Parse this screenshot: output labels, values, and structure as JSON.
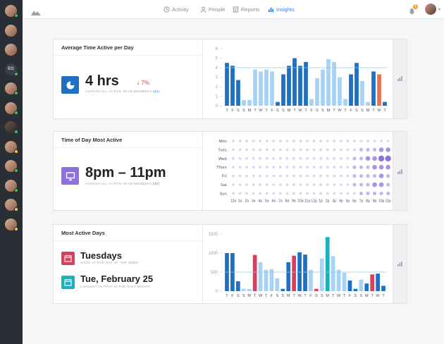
{
  "sidebar": {
    "avatars": [
      {
        "kind": "photo",
        "status": "#3fbf5a"
      },
      {
        "kind": "photo",
        "status": ""
      },
      {
        "kind": "photo",
        "status": ""
      },
      {
        "kind": "initials",
        "label": "EG",
        "status": "#3fbf5a"
      },
      {
        "kind": "photo",
        "status": "#3fbf5a"
      },
      {
        "kind": "photo",
        "status": "#3fbf5a"
      },
      {
        "kind": "dark",
        "status": "#3fbf5a"
      },
      {
        "kind": "photo",
        "status": "#f2c94c"
      },
      {
        "kind": "photo",
        "status": "#3fbf5a"
      },
      {
        "kind": "photo",
        "status": "#3fbf5a"
      },
      {
        "kind": "photo",
        "status": "#f2c94c"
      },
      {
        "kind": "photo",
        "status": "#f2c94c"
      }
    ]
  },
  "nav": {
    "items": [
      {
        "label": "Activity",
        "icon": "clock-icon",
        "active": false
      },
      {
        "label": "People",
        "icon": "person-icon",
        "active": false
      },
      {
        "label": "Reports",
        "icon": "document-icon",
        "active": false
      },
      {
        "label": "Insights",
        "icon": "bar-chart-icon",
        "active": true
      }
    ],
    "notification_count": "1"
  },
  "cards": {
    "avg_time": {
      "title": "Average Time Active per Day",
      "value": "4 hrs",
      "delta": "7%",
      "subtitle_prefix": "ACROSS ALL ACTIVE TEAM MEMBERS",
      "subtitle_count": "(32)"
    },
    "time_of_day": {
      "title": "Time of Day Most Active",
      "value": "8pm – 11pm",
      "subtitle_prefix": "ACROSS ALL ACTIVE TEAM MEMBERS",
      "subtitle_count": "(32)"
    },
    "active_days": {
      "title": "Most Active Days",
      "primary_value": "Tuesdays",
      "primary_caption": "MOST ACTIVE DAY OF THE WEEK",
      "secondary_value": "Tue, February 25",
      "secondary_caption": "LARGEST OUTPUT IN THE PAST MONTH"
    }
  },
  "colors": {
    "blue": "#1f6fc5",
    "light_blue": "#a9d3f5",
    "orange": "#e8714f",
    "pink": "#d9405f",
    "teal": "#1ab0bd",
    "purple": "#8e6ee0",
    "accent_link": "#2f80ed"
  },
  "chart_data": [
    {
      "type": "bar",
      "categories": [
        "T",
        "F",
        "S",
        "S",
        "M",
        "T",
        "W",
        "T",
        "F",
        "S",
        "S",
        "M",
        "T",
        "W",
        "T",
        "F",
        "S",
        "S",
        "M",
        "T",
        "W",
        "T",
        "F",
        "S",
        "S",
        "M",
        "T",
        "W",
        "T"
      ],
      "values": [
        4.5,
        4.2,
        2.7,
        0.6,
        0.6,
        3.8,
        3.6,
        3.8,
        3.6,
        0.4,
        3.3,
        4.2,
        5.0,
        4.2,
        4.6,
        0.7,
        2.9,
        3.8,
        4.9,
        4.6,
        3.0,
        0.7,
        3.3,
        4.5,
        2.6,
        0.4,
        3.6,
        3.3,
        0.4
      ],
      "colors": [
        "blue",
        "blue",
        "blue",
        "light",
        "light",
        "light",
        "light",
        "light",
        "light",
        "blue",
        "blue",
        "blue",
        "blue",
        "blue",
        "blue",
        "light",
        "light",
        "light",
        "light",
        "light",
        "light",
        "light",
        "blue",
        "blue",
        "light",
        "light",
        "blue",
        "orange",
        "blue"
      ],
      "ylim": [
        0,
        6
      ],
      "yticks": [
        "0",
        "1",
        "2",
        "3",
        "4",
        "5",
        "6"
      ],
      "reference_line": 4.0,
      "grid": false
    },
    {
      "type": "scatter",
      "rows": [
        "Mon.",
        "Tues.",
        "Wed.",
        "Thurs.",
        "Fri.",
        "Sat.",
        "Sun."
      ],
      "columns": [
        "12a",
        "1a",
        "2a",
        "3a",
        "4a",
        "5a",
        "6a",
        "7a",
        "8a",
        "9a",
        "10a",
        "11a",
        "12p",
        "1p",
        "2p",
        "3p",
        "4p",
        "5p",
        "6p",
        "7p",
        "8p",
        "9p",
        "10p",
        "11p"
      ],
      "intensity": [
        [
          1,
          1,
          1,
          1,
          1,
          1,
          1,
          1,
          1,
          1,
          1,
          1,
          1,
          1,
          1,
          1,
          1,
          1,
          1,
          1,
          1,
          1,
          1,
          1
        ],
        [
          1,
          1,
          1,
          1,
          1,
          1,
          1,
          1,
          1,
          1,
          1,
          1,
          1,
          1,
          1,
          1,
          1,
          1,
          1,
          2,
          2,
          2,
          3,
          3
        ],
        [
          1,
          1,
          1,
          1,
          1,
          1,
          1,
          1,
          1,
          1,
          1,
          1,
          1,
          1,
          1,
          1,
          1,
          1,
          2,
          2,
          3,
          3,
          4,
          4
        ],
        [
          1,
          1,
          1,
          1,
          1,
          1,
          1,
          1,
          1,
          1,
          1,
          1,
          1,
          1,
          1,
          1,
          1,
          1,
          2,
          2,
          2,
          3,
          3,
          3
        ],
        [
          1,
          1,
          1,
          1,
          1,
          1,
          1,
          1,
          1,
          1,
          1,
          1,
          1,
          1,
          1,
          1,
          1,
          1,
          2,
          2,
          2,
          2,
          3,
          2
        ],
        [
          1,
          1,
          1,
          1,
          1,
          1,
          1,
          1,
          1,
          1,
          1,
          1,
          1,
          1,
          1,
          1,
          1,
          1,
          2,
          2,
          2,
          3,
          3,
          2
        ],
        [
          1,
          1,
          1,
          1,
          1,
          1,
          1,
          1,
          1,
          1,
          1,
          1,
          1,
          1,
          1,
          1,
          1,
          1,
          1,
          2,
          2,
          2,
          2,
          2
        ]
      ]
    },
    {
      "type": "bar",
      "categories": [
        "T",
        "F",
        "S",
        "S",
        "M",
        "T",
        "W",
        "T",
        "F",
        "S",
        "S",
        "M",
        "T",
        "W",
        "T",
        "F",
        "S",
        "S",
        "M",
        "T",
        "W",
        "T",
        "F",
        "S",
        "S",
        "M",
        "T",
        "W",
        "T"
      ],
      "values": [
        1000,
        1000,
        260,
        60,
        60,
        950,
        760,
        560,
        580,
        340,
        60,
        760,
        930,
        1020,
        960,
        560,
        60,
        860,
        1420,
        920,
        560,
        480,
        280,
        60,
        300,
        200,
        440,
        460,
        140
      ],
      "colors": [
        "blue",
        "blue",
        "blue",
        "light",
        "light",
        "pink",
        "light",
        "light",
        "light",
        "light",
        "blue",
        "blue",
        "pink",
        "blue",
        "blue",
        "light",
        "pink",
        "light",
        "teal",
        "light",
        "light",
        "light",
        "blue",
        "blue",
        "light",
        "blue",
        "pink",
        "blue",
        "blue"
      ],
      "ylim": [
        0,
        1500
      ],
      "yticks": [
        "0",
        "500",
        "1000",
        "1500"
      ],
      "reference_line": 500,
      "grid": false
    }
  ]
}
